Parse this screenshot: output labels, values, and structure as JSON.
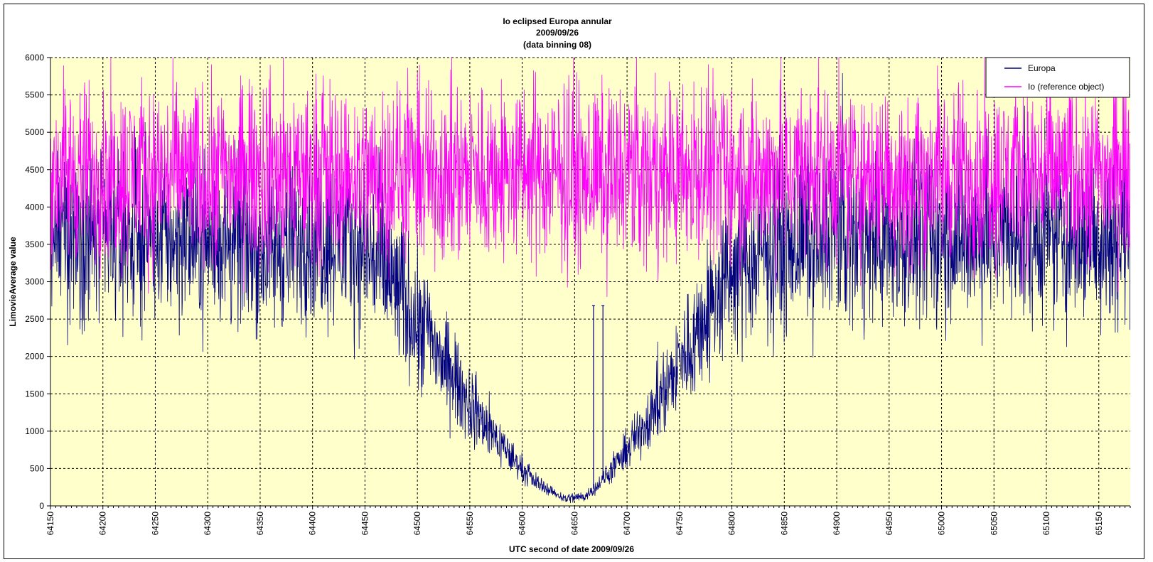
{
  "chart_data": {
    "type": "line",
    "title_lines": [
      "Io eclipsed Europa annular",
      "2009/09/26",
      "(data binning 08)"
    ],
    "xlabel": "UTC second of date 2009/09/26",
    "ylabel": "LimovieAverage value",
    "xlim": [
      64150,
      65180
    ],
    "ylim": [
      0,
      6000
    ],
    "x_ticks": [
      64150,
      64200,
      64250,
      64300,
      64350,
      64400,
      64450,
      64500,
      64550,
      64600,
      64650,
      64700,
      64750,
      64800,
      64850,
      64900,
      64950,
      65000,
      65050,
      65100,
      65150
    ],
    "y_ticks": [
      0,
      500,
      1000,
      1500,
      2000,
      2500,
      3000,
      3500,
      4000,
      4500,
      5000,
      5500,
      6000
    ],
    "grid": true,
    "legend_position": "top-right",
    "plot_background": "#ffffcc",
    "series": [
      {
        "name": "Europa",
        "color": "#000080",
        "x": [
          64150,
          64180,
          64210,
          64240,
          64270,
          64300,
          64330,
          64360,
          64390,
          64420,
          64450,
          64470,
          64490,
          64510,
          64530,
          64550,
          64570,
          64590,
          64610,
          64630,
          64640,
          64650,
          64660,
          64670,
          64690,
          64710,
          64730,
          64750,
          64770,
          64790,
          64810,
          64840,
          64870,
          64900,
          64930,
          64960,
          64990,
          65020,
          65050,
          65080,
          65110,
          65140,
          65180
        ],
        "values": [
          3600,
          3650,
          3550,
          3600,
          3600,
          3500,
          3550,
          3400,
          3600,
          3600,
          3450,
          3100,
          2700,
          2300,
          1800,
          1350,
          1000,
          650,
          350,
          180,
          100,
          110,
          130,
          250,
          550,
          950,
          1400,
          1900,
          2400,
          2900,
          3250,
          3450,
          3550,
          3600,
          3600,
          3500,
          3550,
          3600,
          3550,
          3600,
          3550,
          3600,
          3600
        ]
      },
      {
        "name": "Io (reference object)",
        "color": "#ff00ff",
        "x": [
          64150,
          64300,
          64450,
          64600,
          64750,
          64900,
          65050,
          65180
        ],
        "values": [
          4450,
          4450,
          4450,
          4450,
          4450,
          4450,
          4450,
          4450
        ]
      }
    ],
    "annotations": [
      {
        "series": "Europa",
        "x": 64668,
        "value": 2680,
        "note": "spike"
      },
      {
        "series": "Europa",
        "x": 64677,
        "value": 2680,
        "note": "spike"
      }
    ]
  }
}
